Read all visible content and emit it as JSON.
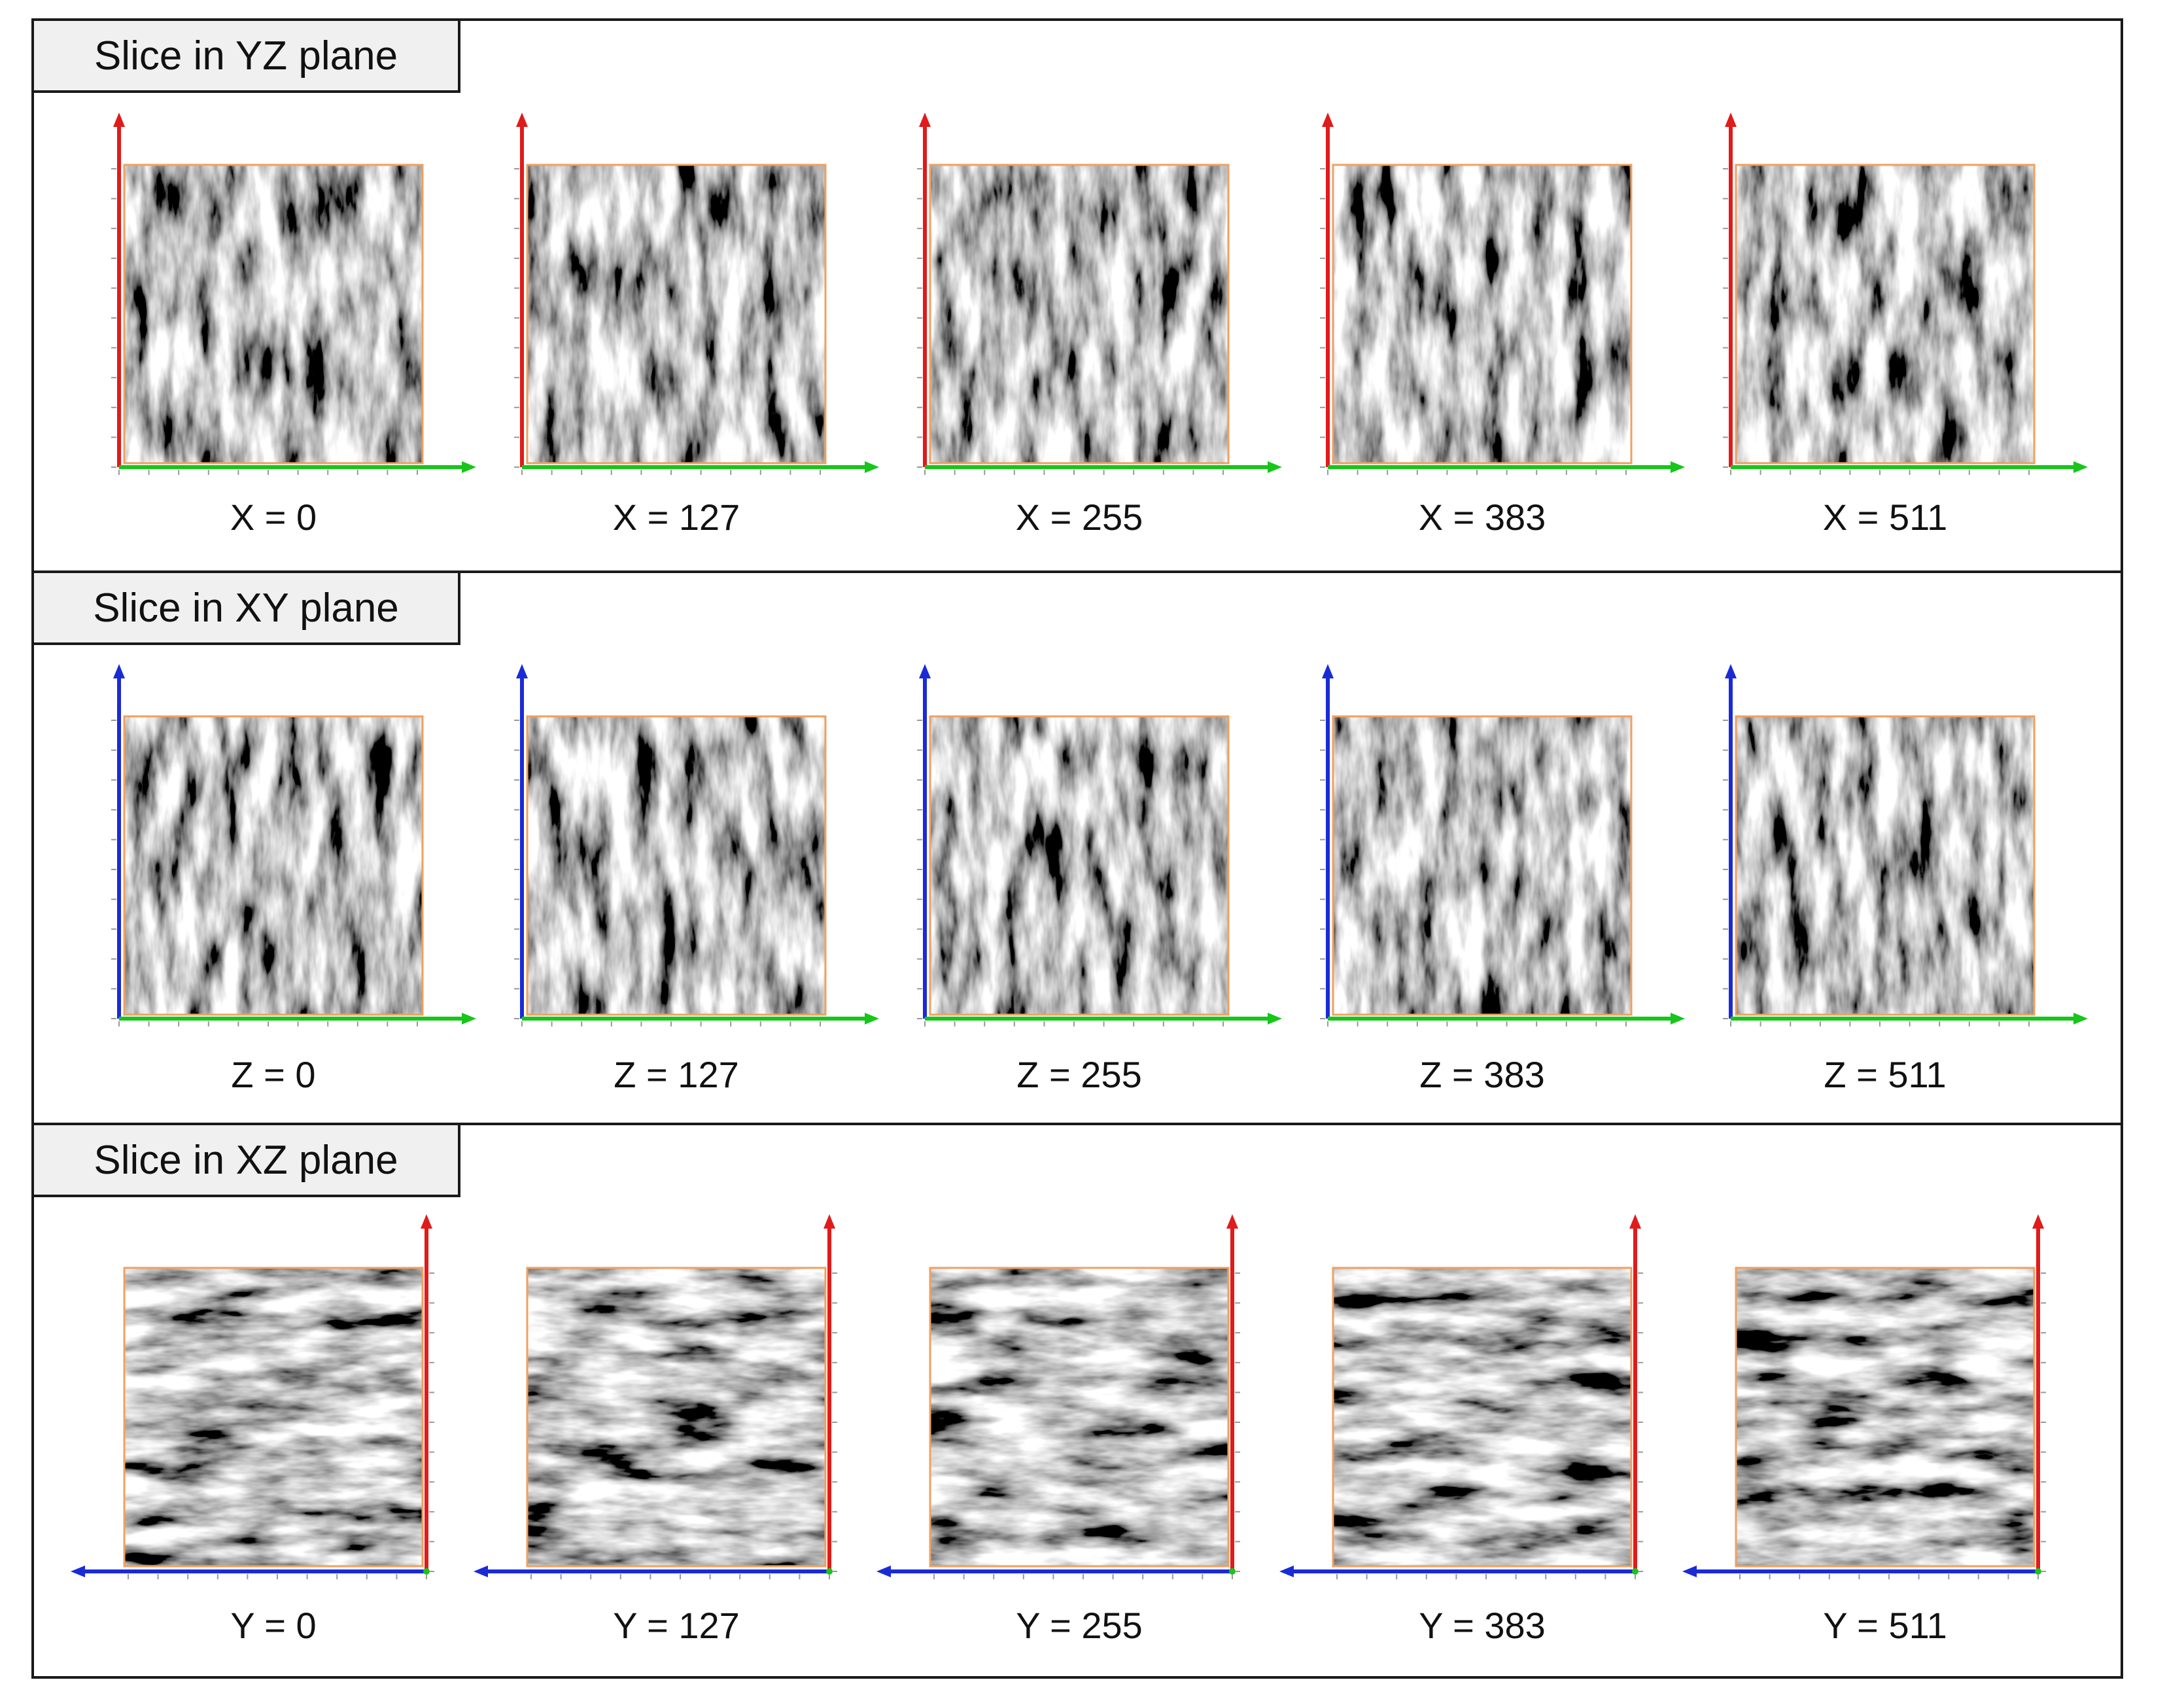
{
  "colors": {
    "axis_red": "#e01b1b",
    "axis_green": "#16c61a",
    "axis_blue": "#1a2bd6",
    "frame_orange": "#f0a060"
  },
  "sections": [
    {
      "title": "Slice in YZ plane",
      "layout": "vertical-red-horizontal-green",
      "slices": [
        "X = 0",
        "X = 127",
        "X = 255",
        "X = 383",
        "X = 511"
      ]
    },
    {
      "title": "Slice in XY plane",
      "layout": "vertical-blue-horizontal-green",
      "slices": [
        "Z = 0",
        "Z = 127",
        "Z = 255",
        "Z = 383",
        "Z = 511"
      ]
    },
    {
      "title": "Slice in XZ plane",
      "layout": "vertical-red-right-horizontal-blue-left",
      "slices": [
        "Y = 0",
        "Y = 127",
        "Y = 255",
        "Y = 383",
        "Y = 511"
      ]
    }
  ]
}
